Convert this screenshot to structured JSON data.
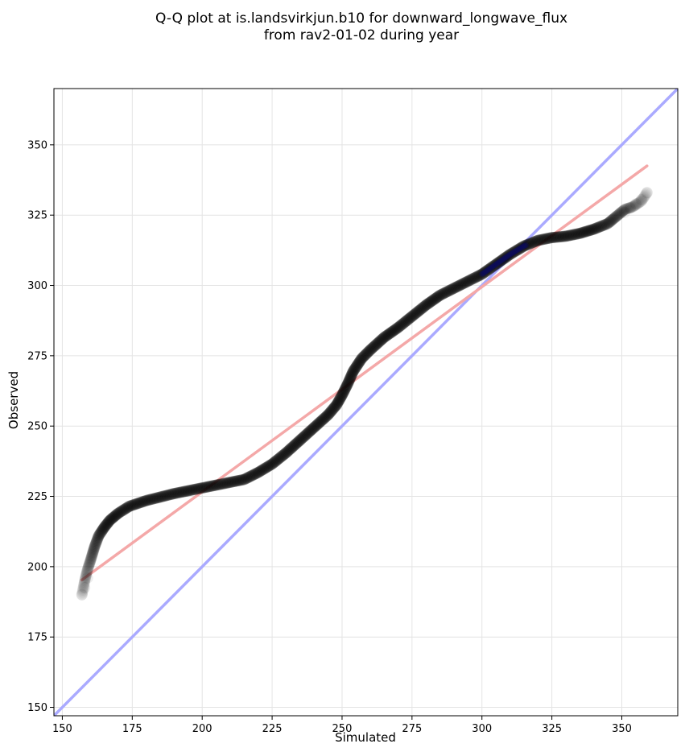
{
  "chart_data": {
    "type": "scatter",
    "title_lines": [
      "Q-Q plot at is.landsvirkjun.b10 for downward_longwave_flux",
      "from rav2-01-02 during year"
    ],
    "xlabel": "Simulated",
    "ylabel": "Observed",
    "xlim": [
      147,
      370
    ],
    "ylim": [
      147,
      370
    ],
    "xticks": [
      150,
      175,
      200,
      225,
      250,
      275,
      300,
      325,
      350
    ],
    "yticks": [
      150,
      175,
      200,
      225,
      250,
      275,
      300,
      325,
      350
    ],
    "grid": true,
    "legend": "none",
    "quantile_curve": [
      [
        157.0,
        190.0
      ],
      [
        158.0,
        195.0
      ],
      [
        159.0,
        199.0
      ],
      [
        160.0,
        202.0
      ],
      [
        161.5,
        207.0
      ],
      [
        163.0,
        211.0
      ],
      [
        165.0,
        214.0
      ],
      [
        167.0,
        216.5
      ],
      [
        170.0,
        219.0
      ],
      [
        174.0,
        221.5
      ],
      [
        180.0,
        223.5
      ],
      [
        190.0,
        226.0
      ],
      [
        200.0,
        228.0
      ],
      [
        210.0,
        230.0
      ],
      [
        215.0,
        231.0
      ],
      [
        220.0,
        233.5
      ],
      [
        225.0,
        236.5
      ],
      [
        230.0,
        240.5
      ],
      [
        235.0,
        245.0
      ],
      [
        240.0,
        249.5
      ],
      [
        245.0,
        254.0
      ],
      [
        248.0,
        257.5
      ],
      [
        250.0,
        261.0
      ],
      [
        252.0,
        265.0
      ],
      [
        254.0,
        269.5
      ],
      [
        257.0,
        274.0
      ],
      [
        260.0,
        277.0
      ],
      [
        265.0,
        281.5
      ],
      [
        270.0,
        285.0
      ],
      [
        275.0,
        289.0
      ],
      [
        280.0,
        293.0
      ],
      [
        285.0,
        296.5
      ],
      [
        290.0,
        299.0
      ],
      [
        295.0,
        301.5
      ],
      [
        300.0,
        304.0
      ],
      [
        305.0,
        307.5
      ],
      [
        310.0,
        311.0
      ],
      [
        315.0,
        314.0
      ],
      [
        320.0,
        316.0
      ],
      [
        325.0,
        317.0
      ],
      [
        330.0,
        317.5
      ],
      [
        335.0,
        318.5
      ],
      [
        340.0,
        320.0
      ],
      [
        345.0,
        322.0
      ],
      [
        348.0,
        324.5
      ],
      [
        351.0,
        327.0
      ],
      [
        354.0,
        328.0
      ],
      [
        357.0,
        330.0
      ],
      [
        359.0,
        333.0
      ]
    ],
    "faded_points": [
      [
        157.0,
        190.0
      ],
      [
        158.0,
        192.5
      ],
      [
        159.0,
        196.0
      ],
      [
        351.0,
        326.0
      ],
      [
        353.0,
        327.5
      ],
      [
        355.0,
        329.0
      ],
      [
        357.0,
        330.5
      ],
      [
        359.0,
        333.0
      ]
    ],
    "reference_lines": [
      {
        "kind": "identity",
        "color": "#aaaaff",
        "points": [
          [
            147,
            147
          ],
          [
            370,
            370
          ]
        ]
      },
      {
        "kind": "fit",
        "color": "#f4a8a8",
        "points": [
          [
            157,
            195.3
          ],
          [
            359,
            342.5
          ]
        ]
      }
    ],
    "point_color": "#000000",
    "overlap_color": "#0b0b60"
  }
}
